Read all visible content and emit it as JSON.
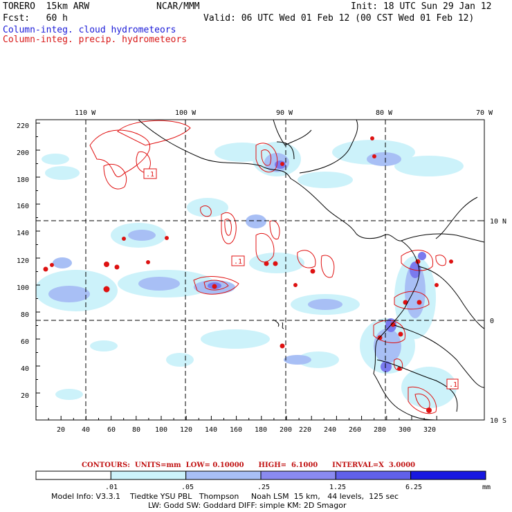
{
  "header": {
    "model": "TORERO  15km ARW",
    "center": "NCAR/MMM",
    "init": "Init: 18 UTC Sun 29 Jan 12",
    "fcst": "Fcst:   60 h",
    "valid": "Valid: 06 UTC Wed 01 Feb 12 (00 CST Wed 01 Feb 12)",
    "legend_cloud": "Column-integ. cloud hydrometeors",
    "legend_precip": "Column-integ. precip. hydrometeors"
  },
  "axes": {
    "top_lon_labels": [
      "110 W",
      "100 W",
      "90 W",
      "80 W",
      "70 W"
    ],
    "right_lat_labels": [
      "10 N",
      "0",
      "10 S"
    ],
    "left_ticks": [
      "220",
      "200",
      "180",
      "160",
      "140",
      "120",
      "100",
      "80",
      "60",
      "40",
      "20"
    ],
    "bottom_ticks": [
      "20",
      "40",
      "60",
      "80",
      "100",
      "120",
      "140",
      "160",
      "180",
      "200",
      "220",
      "240",
      "260",
      "280",
      "300",
      "320"
    ]
  },
  "contour_labels": [
    ".1",
    ".1",
    ".1"
  ],
  "contour_info": "CONTOURS:  UNITS=mm  LOW= 0.10000      HIGH=  6.1000      INTERVAL=X  3.0000",
  "colorbar": {
    "labels": [
      ".01",
      ".05",
      ".25",
      "1.25",
      "6.25"
    ],
    "units": "mm",
    "colors": [
      "#ffffff",
      "#ccf2fa",
      "#a8bff5",
      "#8a8af0",
      "#6060ea",
      "#1818e0"
    ]
  },
  "footer": {
    "line1": "Model Info: V3.3.1    Tiedtke YSU PBL   Thompson     Noah LSM  15 km,   44 levels,  125 sec",
    "line2": "LW: Godd SW: Goddard DIFF: simple KM: 2D Smagor"
  },
  "colors": {
    "cloud_light": "#ccf2fa",
    "cloud_mid": "#a8bff5",
    "cloud_dark": "#7a7aee",
    "precip": "#e01010",
    "coast": "#000000"
  }
}
